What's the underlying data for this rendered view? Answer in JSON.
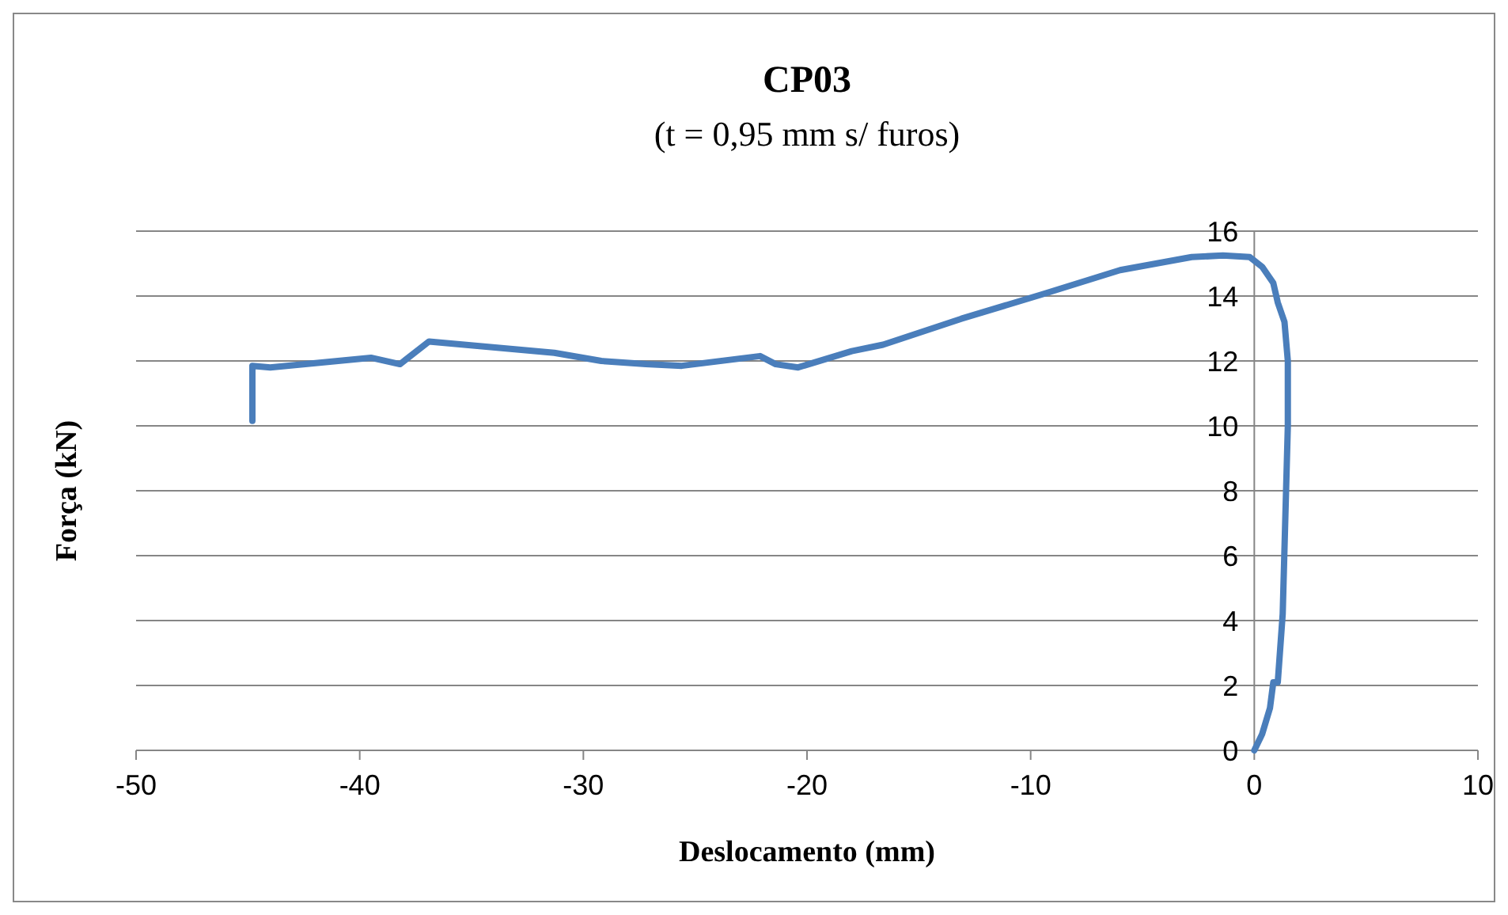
{
  "chart_data": {
    "type": "line",
    "title": "CP03",
    "subtitle": "(t = 0,95 mm s/ furos)",
    "xlabel": "Deslocamento (mm)",
    "ylabel": "Força (kN)",
    "xlim": [
      -50,
      10
    ],
    "xticks": [
      -50,
      -40,
      -30,
      -20,
      -10,
      0,
      10
    ],
    "ylim": [
      0,
      16
    ],
    "yticks": [
      0,
      2,
      4,
      6,
      8,
      10,
      12,
      14,
      16
    ],
    "grid": "y",
    "marker": "none",
    "line_style": "solid",
    "series": [
      {
        "color": "#4a7ebb",
        "x": [
          0,
          0.35,
          0.7,
          0.85,
          1.05,
          1.27,
          1.5,
          1.5,
          1.35,
          1.05,
          0.85,
          0.35,
          -0.2,
          -1.4,
          -2.8,
          -6,
          -9.5,
          -13.1,
          -16.6,
          -18.0,
          -20.4,
          -21.4,
          -22.1,
          -25.6,
          -27.2,
          -29.2,
          -31.3,
          -36.9,
          -38.2,
          -39.5,
          -44,
          -44.8,
          -44.8
        ],
        "values": [
          0,
          0.5,
          1.3,
          2.1,
          2.1,
          4.2,
          10,
          12,
          13.2,
          13.8,
          14.4,
          14.9,
          15.2,
          15.25,
          15.2,
          14.8,
          14.05,
          13.3,
          12.5,
          12.3,
          11.8,
          11.9,
          12.15,
          11.85,
          11.9,
          12.0,
          12.25,
          12.6,
          11.9,
          12.1,
          11.8,
          11.85,
          10.15
        ]
      }
    ]
  }
}
